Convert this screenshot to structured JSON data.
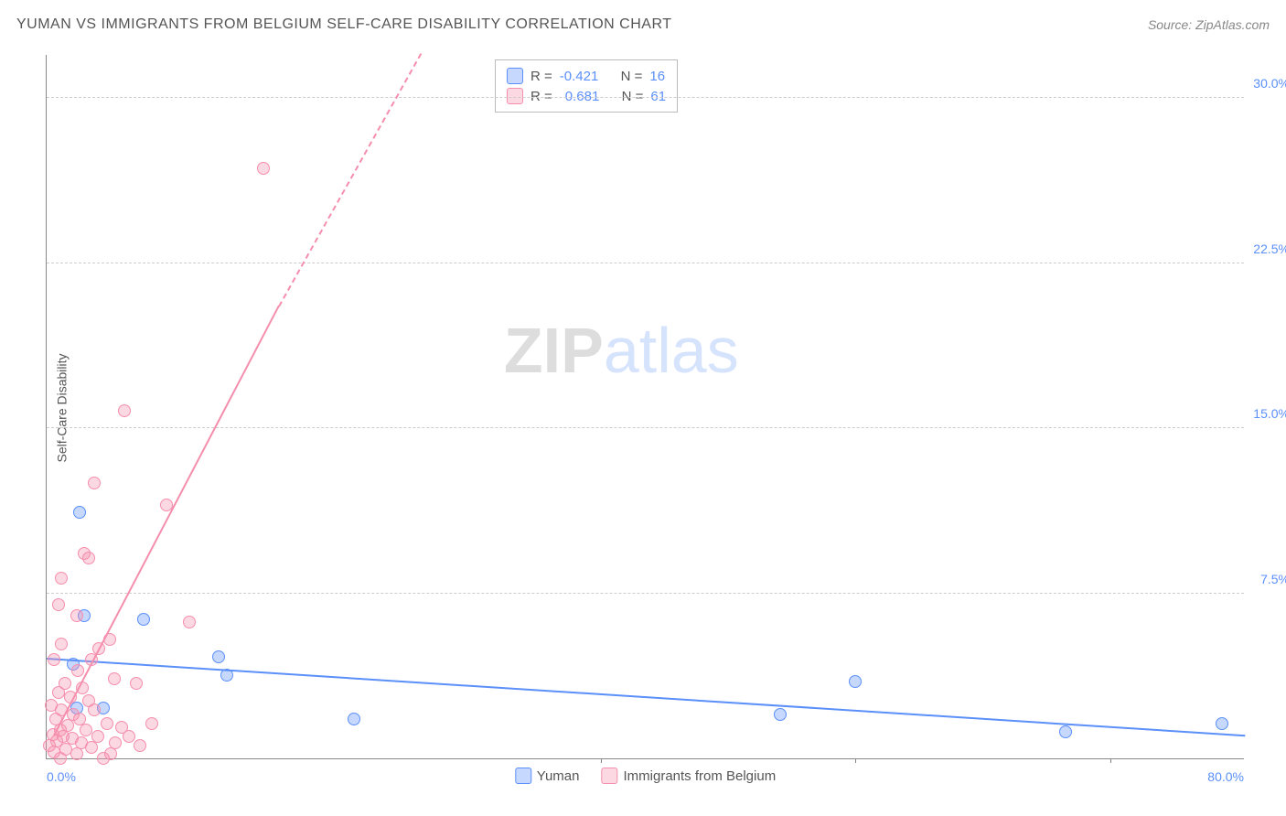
{
  "header": {
    "title": "YUMAN VS IMMIGRANTS FROM BELGIUM SELF-CARE DISABILITY CORRELATION CHART",
    "source_label": "Source:",
    "source_name": "ZipAtlas.com"
  },
  "ylabel": "Self-Care Disability",
  "watermark": {
    "part1": "ZIP",
    "part2": "atlas"
  },
  "chart": {
    "type": "scatter",
    "xlim": [
      0,
      80
    ],
    "ylim": [
      0,
      32
    ],
    "yticks": [
      7.5,
      15.0,
      22.5,
      30.0
    ],
    "ytick_labels": [
      "7.5%",
      "15.0%",
      "22.5%",
      "30.0%"
    ],
    "xtick_label_left": "0.0%",
    "xtick_label_right": "80.0%",
    "xtick_positions": [
      37,
      54,
      71
    ],
    "background_color": "#ffffff",
    "grid_color": "#cccccc",
    "series": [
      {
        "name": "Yuman",
        "color": "#5b8ff9",
        "fill": "rgba(91,143,249,0.35)",
        "R": -0.421,
        "N": 16,
        "regression": {
          "x1": 0,
          "y1": 4.5,
          "x2": 80,
          "y2": 1.0,
          "solid": true
        },
        "points": [
          [
            2.2,
            11.2
          ],
          [
            2.5,
            6.5
          ],
          [
            6.5,
            6.3
          ],
          [
            1.8,
            4.3
          ],
          [
            2.0,
            2.3
          ],
          [
            3.8,
            2.3
          ],
          [
            11.5,
            4.6
          ],
          [
            12.0,
            3.8
          ],
          [
            20.5,
            1.8
          ],
          [
            54.0,
            3.5
          ],
          [
            49.0,
            2.0
          ],
          [
            68.0,
            1.2
          ],
          [
            78.5,
            1.6
          ]
        ]
      },
      {
        "name": "Immigrants from Belgium",
        "color": "#f58ead",
        "fill": "rgba(245,142,173,0.35)",
        "R": 0.681,
        "N": 61,
        "regression": {
          "x1": 0.5,
          "y1": 1.0,
          "x2": 15.5,
          "y2": 20.5,
          "solid_until_x": 15.5,
          "dash_to": [
            25,
            32
          ]
        },
        "points": [
          [
            14.5,
            26.8
          ],
          [
            5.2,
            15.8
          ],
          [
            8.0,
            11.5
          ],
          [
            9.5,
            6.2
          ],
          [
            3.2,
            12.5
          ],
          [
            2.5,
            9.3
          ],
          [
            2.8,
            9.1
          ],
          [
            1.0,
            8.2
          ],
          [
            0.8,
            7.0
          ],
          [
            2.0,
            6.5
          ],
          [
            4.2,
            5.4
          ],
          [
            3.5,
            5.0
          ],
          [
            3.0,
            4.5
          ],
          [
            1.0,
            5.2
          ],
          [
            0.5,
            4.5
          ],
          [
            2.1,
            4.0
          ],
          [
            4.5,
            3.6
          ],
          [
            6.0,
            3.4
          ],
          [
            7.0,
            1.6
          ],
          [
            1.2,
            3.4
          ],
          [
            2.4,
            3.2
          ],
          [
            0.8,
            3.0
          ],
          [
            1.6,
            2.8
          ],
          [
            2.8,
            2.6
          ],
          [
            0.3,
            2.4
          ],
          [
            1.0,
            2.2
          ],
          [
            3.2,
            2.2
          ],
          [
            1.8,
            2.0
          ],
          [
            0.6,
            1.8
          ],
          [
            2.2,
            1.8
          ],
          [
            4.0,
            1.6
          ],
          [
            5.0,
            1.4
          ],
          [
            1.4,
            1.5
          ],
          [
            0.9,
            1.3
          ],
          [
            2.6,
            1.3
          ],
          [
            0.4,
            1.1
          ],
          [
            1.1,
            1.0
          ],
          [
            3.4,
            1.0
          ],
          [
            1.7,
            0.9
          ],
          [
            0.7,
            0.8
          ],
          [
            2.3,
            0.7
          ],
          [
            4.6,
            0.7
          ],
          [
            3.0,
            0.5
          ],
          [
            1.3,
            0.4
          ],
          [
            0.5,
            0.3
          ],
          [
            5.5,
            1.0
          ],
          [
            6.2,
            0.6
          ],
          [
            2.0,
            0.2
          ],
          [
            0.2,
            0.6
          ],
          [
            0.9,
            0.0
          ],
          [
            3.8,
            0.0
          ],
          [
            4.3,
            0.2
          ]
        ]
      }
    ]
  },
  "stats_box": {
    "rows": [
      {
        "swatch": "blue",
        "r_label": "R =",
        "r_value": "-0.421",
        "n_label": "N =",
        "n_value": "16"
      },
      {
        "swatch": "pink",
        "r_label": "R =",
        "r_value": "0.681",
        "n_label": "N =",
        "n_value": "61"
      }
    ]
  },
  "legend": {
    "items": [
      {
        "swatch": "blue",
        "label": "Yuman"
      },
      {
        "swatch": "pink",
        "label": "Immigrants from Belgium"
      }
    ]
  }
}
